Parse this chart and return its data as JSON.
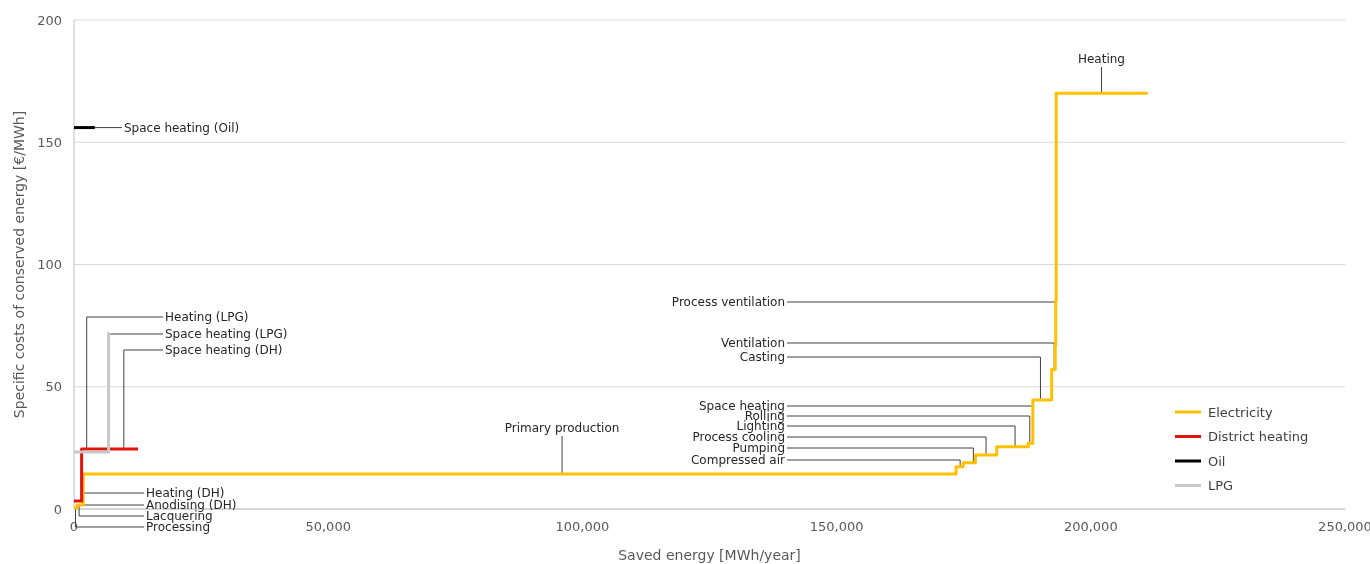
{
  "chart_data": {
    "type": "step",
    "xlabel": "Saved energy [MWh/year]",
    "ylabel": "Specific costs of conserved energy [€/MWh]",
    "xlim": [
      0,
      250000
    ],
    "ylim": [
      0,
      200
    ],
    "xticks": [
      0,
      {
        "value": 50000,
        "label": "50,000"
      },
      {
        "value": 100000,
        "label": "100,000"
      },
      {
        "value": 150000,
        "label": "150,000"
      },
      {
        "value": 200000,
        "label": "200,000"
      },
      {
        "value": 250000,
        "label": "250,000"
      }
    ],
    "yticks": [
      0,
      50,
      100,
      150,
      200
    ],
    "grid": "y",
    "legend": "right",
    "line_style": "solid",
    "marker": "none",
    "series": [
      {
        "name": "Electricity",
        "color": "#ffc000",
        "x": [
          0,
          600,
          1800,
          173500,
          174900,
          177300,
          181500,
          187700,
          188600,
          192300,
          193000,
          193100,
          193200,
          211200
        ],
        "values": [
          0.4,
          1.6,
          14.3,
          17.3,
          18.9,
          22.1,
          25.5,
          26.9,
          44.6,
          57.1,
          67,
          85,
          170,
          170
        ]
      },
      {
        "name": "District heating",
        "color": "#e3120b",
        "x": [
          0,
          1500,
          12600
        ],
        "values": [
          3.3,
          24.5,
          24.5
        ]
      },
      {
        "name": "Oil",
        "color": "#000000",
        "x": [
          0,
          4100
        ],
        "values": [
          156,
          156
        ]
      },
      {
        "name": "LPG",
        "color": "#c8c8c8",
        "x": [
          0,
          6800,
          6900
        ],
        "values": [
          23.3,
          72,
          72
        ]
      }
    ],
    "annotations": [
      {
        "text": "Space heating (Oil)",
        "x": 4100,
        "y": 156
      },
      {
        "text": "Heating (LPG)",
        "x": 2500,
        "y": 24.5
      },
      {
        "text": "Space heating (LPG)",
        "x": 6900,
        "y": 72
      },
      {
        "text": "Space heating (DH)",
        "x": 9800,
        "y": 24.5
      },
      {
        "text": "Heating (DH)",
        "x": 1500,
        "y": 5
      },
      {
        "text": "Anodising (DH)",
        "x": 600,
        "y": 1.6
      },
      {
        "text": "Lacquering",
        "x": 1000,
        "y": 1.6
      },
      {
        "text": "Processing",
        "x": 300,
        "y": 0.4
      },
      {
        "text": "Primary production",
        "x": 96000,
        "y": 14.3
      },
      {
        "text": "Compressed air",
        "x": 174300,
        "y": 17.3
      },
      {
        "text": "Pumping",
        "x": 176900,
        "y": 18.9
      },
      {
        "text": "Process cooling",
        "x": 179400,
        "y": 22.1
      },
      {
        "text": "Lighting",
        "x": 185100,
        "y": 25.5
      },
      {
        "text": "Rolling",
        "x": 188000,
        "y": 26.9
      },
      {
        "text": "Space heating",
        "x": 188600,
        "y": 35
      },
      {
        "text": "Casting",
        "x": 190100,
        "y": 44.6
      },
      {
        "text": "Ventilation",
        "x": 192800,
        "y": 57.1
      },
      {
        "text": "Process ventilation",
        "x": 193000,
        "y": 85
      },
      {
        "text": "Heating",
        "x": 202100,
        "y": 170
      }
    ]
  }
}
